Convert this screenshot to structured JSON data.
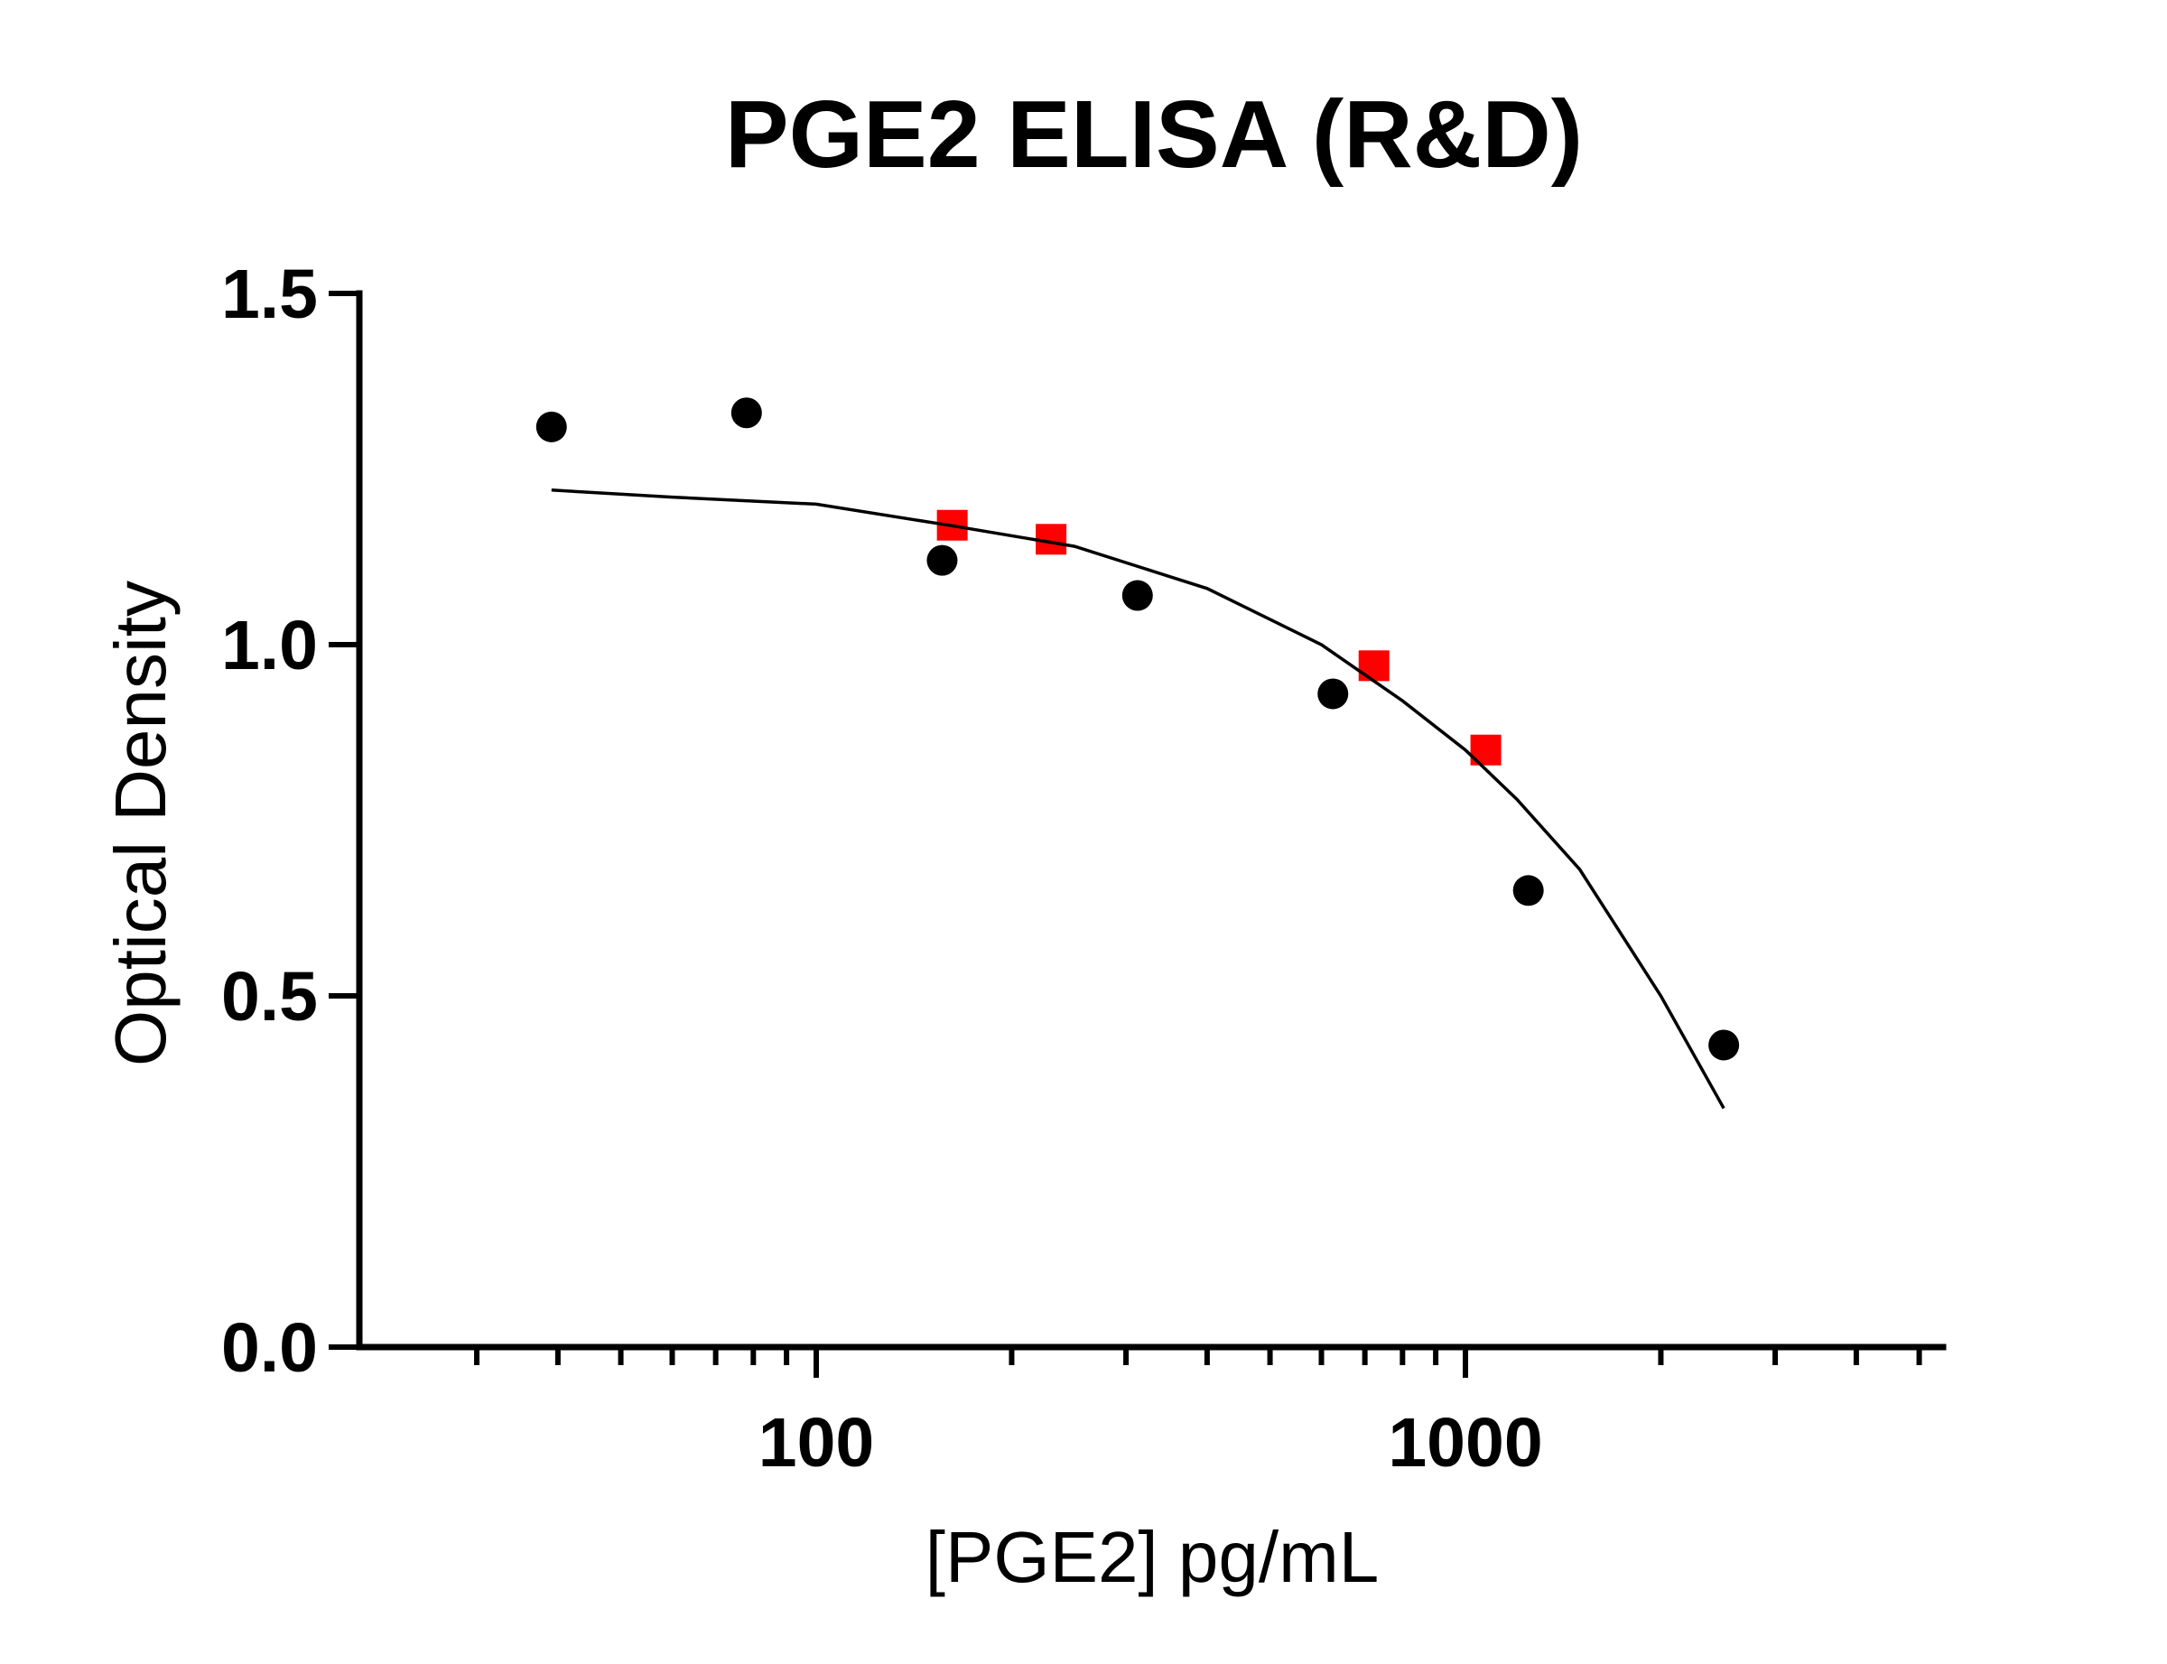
{
  "chart_data": {
    "type": "scatter",
    "title": "PGE2 ELISA (R&D)",
    "xlabel": "[PGE2] pg/mL",
    "ylabel": "Optical Density",
    "x_scale": "log",
    "xlim": [
      20,
      5500
    ],
    "ylim": [
      0,
      1.5
    ],
    "x_ticks": [
      100,
      1000
    ],
    "x_tick_labels": [
      "100",
      "1000"
    ],
    "y_ticks": [
      0,
      0.5,
      1.0,
      1.5
    ],
    "y_tick_labels": [
      "0.0",
      "0.5",
      "1.0",
      "1.5"
    ],
    "grid": false,
    "legend": "none",
    "series": [
      {
        "marker": "circle",
        "color": "#000000",
        "x": [
          39.1,
          78.1,
          156.3,
          312.5,
          625,
          1250,
          2500
        ],
        "y": [
          1.31,
          1.33,
          1.12,
          1.07,
          0.93,
          0.65,
          0.43
        ]
      },
      {
        "marker": "square",
        "color": "#ff0000",
        "x": [
          162,
          230,
          723,
          1075
        ],
        "y": [
          1.17,
          1.15,
          0.97,
          0.85
        ]
      },
      {
        "type": "line",
        "color": "#000000",
        "x": [
          39.1,
          60,
          100,
          160,
          250,
          400,
          600,
          800,
          1000,
          1200,
          1500,
          2000,
          2500
        ],
        "y": [
          1.22,
          1.21,
          1.2,
          1.17,
          1.14,
          1.08,
          1.0,
          0.92,
          0.85,
          0.78,
          0.68,
          0.5,
          0.34
        ]
      }
    ]
  }
}
